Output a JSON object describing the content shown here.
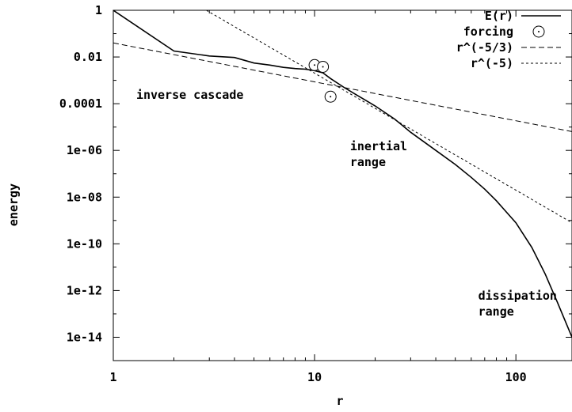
{
  "chart_data": {
    "type": "line",
    "xlabel": "r",
    "ylabel": "energy",
    "xscale": "log",
    "yscale": "log",
    "xlim": [
      1,
      190
    ],
    "ylim": [
      1e-15,
      1
    ],
    "grid": false,
    "legend_position": "top-right",
    "x_ticks": [
      {
        "value": 1,
        "label": "1"
      },
      {
        "value": 10,
        "label": "10"
      },
      {
        "value": 100,
        "label": "100"
      }
    ],
    "y_ticks": [
      {
        "value": 1,
        "label": "1"
      },
      {
        "value": 0.01,
        "label": "0.01"
      },
      {
        "value": 0.0001,
        "label": "0.0001"
      },
      {
        "value": 1e-06,
        "label": "1e-06"
      },
      {
        "value": 1e-08,
        "label": "1e-08"
      },
      {
        "value": 1e-10,
        "label": "1e-10"
      },
      {
        "value": 1e-12,
        "label": "1e-12"
      },
      {
        "value": 1e-14,
        "label": "1e-14"
      }
    ],
    "series": [
      {
        "name": "E(r)",
        "style": "solid",
        "x": [
          1,
          2,
          3,
          4,
          5,
          6,
          7,
          8,
          9,
          10,
          11,
          12,
          14,
          16,
          20,
          25,
          30,
          40,
          50,
          60,
          70,
          80,
          100,
          120,
          140,
          160,
          190
        ],
        "y": [
          1,
          0.018,
          0.011,
          0.0095,
          0.0055,
          0.0045,
          0.0036,
          0.0032,
          0.003,
          0.0026,
          0.0021,
          0.0012,
          0.0005,
          0.00025,
          8e-05,
          2.2e-05,
          6e-06,
          1e-06,
          2.5e-07,
          7e-08,
          2.2e-08,
          7e-09,
          8e-10,
          7e-11,
          5e-12,
          3.5e-13,
          1e-14
        ]
      },
      {
        "name": "forcing",
        "style": "circle-markers",
        "x": [
          10,
          11,
          12
        ],
        "y": [
          0.0045,
          0.0038,
          0.0002
        ]
      },
      {
        "name": "r^(-5/3)",
        "style": "dashed",
        "x": [
          1,
          190
        ],
        "y": [
          0.04,
          6.4e-06
        ]
      },
      {
        "name": "r^(-5)",
        "style": "dotted",
        "x": [
          2.9,
          190
        ],
        "y": [
          1,
          8e-10
        ]
      }
    ],
    "annotations": [
      {
        "lines": [
          "inverse cascade"
        ],
        "x": 1.3,
        "y": 0.00016
      },
      {
        "lines": [
          "inertial",
          "range"
        ],
        "x": 15,
        "y": 1e-06
      },
      {
        "lines": [
          "dissipation",
          "range"
        ],
        "x": 65,
        "y": 4e-13
      }
    ]
  }
}
